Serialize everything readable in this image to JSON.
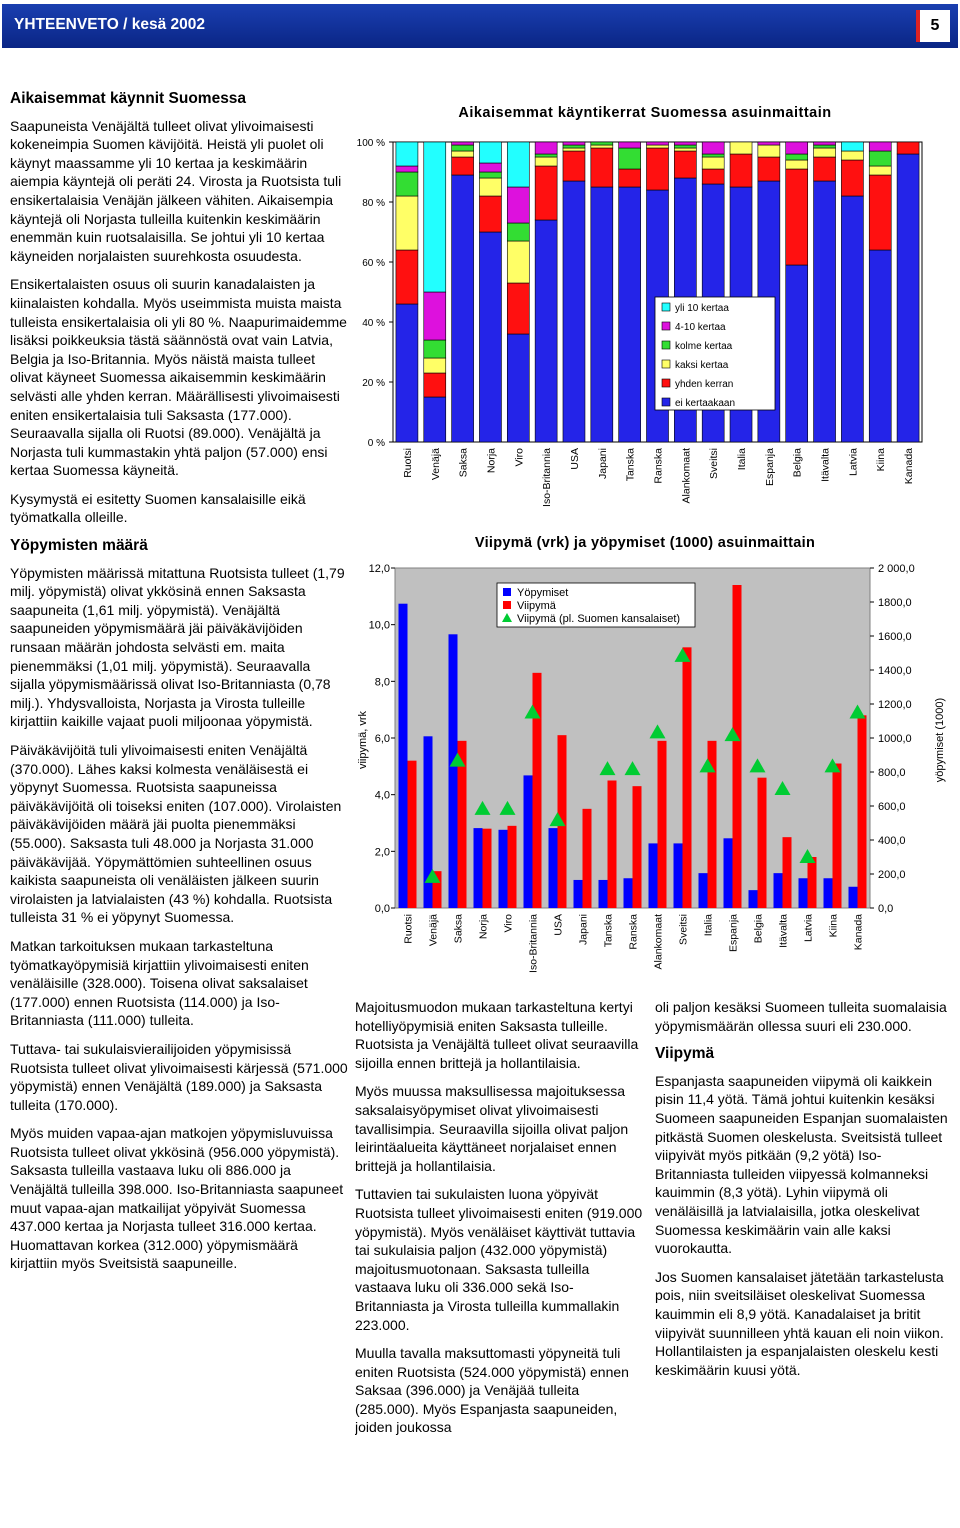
{
  "header": {
    "title": "YHTEENVETO / kesä 2002",
    "page": "5"
  },
  "left_column": [
    {
      "heading": "Aikaisemmat käynnit Suomessa"
    },
    {
      "paragraph": "Saapuneista Venäjältä tulleet olivat ylivoimaisesti kokeneimpia Suomen kävijöitä. Heistä yli puolet oli käynyt maassamme yli 10 kertaa ja keskimäärin aiempia käyntejä oli peräti 24. Virosta ja Ruotsista tuli ensikertalaisia Venäjän jälkeen vähiten. Aikaisempia käyntejä oli Norjasta tulleilla kuitenkin keskimäärin enemmän kuin ruotsalaisilla. Se johtui yli 10 kertaa käyneiden norjalaisten suurehkosta osuudesta."
    },
    {
      "paragraph": "Ensikertalaisten osuus oli suurin kanadalaisten ja kiinalaisten kohdalla. Myös useimmista muista maista tulleista ensikertalaisia oli yli 80 %. Naapurimaidemme lisäksi poikkeuksia tästä säännöstä ovat vain Latvia, Belgia ja Iso-Britannia. Myös näistä maista tulleet olivat käyneet Suomessa aikaisemmin keskimäärin selvästi alle yhden kerran. Määrällisesti ylivoimaisesti eniten ensikertalaisia tuli Saksasta (177.000). Seuraavalla sijalla oli Ruotsi (89.000). Venäjältä ja Norjasta tuli kummastakin yhtä paljon (57.000) ensi kertaa Suomessa käyneitä."
    },
    {
      "paragraph": "Kysymystä ei esitetty Suomen kansalaisille eikä työmatkalla olleille."
    },
    {
      "heading": "Yöpymisten määrä"
    },
    {
      "paragraph": "Yöpymisten määrissä mitattuna Ruotsista tulleet (1,79 milj. yöpymistä) olivat ykkösinä ennen Saksasta saapuneita (1,61 milj. yöpymistä). Venäjältä saapuneiden yöpymismäärä jäi päiväkävijöiden runsaan määrän johdosta selvästi em. maita pienemmäksi (1,01 milj. yöpymistä). Seuraavalla sijalla yöpymismäärissä olivat Iso-Britanniasta (0,78 milj.). Yhdysvalloista, Norjasta ja Virosta tulleille kirjattiin kaikille vajaat puoli miljoonaa yöpymistä."
    },
    {
      "paragraph": "Päiväkävijöitä tuli ylivoimaisesti eniten Venäjältä (370.000). Lähes kaksi kolmesta venäläisestä ei yöpynyt Suomessa. Ruotsista saapuneissa päiväkävijöitä oli toiseksi eniten (107.000). Virolaisten päiväkävijöiden määrä jäi puolta pienemmäksi (55.000). Saksasta tuli 48.000 ja Norjasta 31.000 päiväkävijää. Yöpymättömien suhteellinen osuus kaikista saapuneista oli venäläisten jälkeen suurin virolaisten ja latvialaisten (43 %) kohdalla. Ruotsista tulleista 31 % ei yöpynyt Suomessa."
    },
    {
      "paragraph": "Matkan tarkoituksen mukaan tarkasteltuna työmatkayöpymisiä kirjattiin ylivoimaisesti eniten venäläisille (328.000). Toisena olivat saksalaiset (177.000) ennen Ruotsista (114.000) ja Iso-Britanniasta (111.000) tulleita."
    },
    {
      "paragraph": "Tuttava- tai sukulaisvierailijoiden yöpymisissä Ruotsista tulleet olivat ylivoimaisesti kärjessä (571.000 yöpymistä) ennen Venäjältä (189.000) ja Saksasta tulleita (170.000)."
    },
    {
      "paragraph": "Myös muiden vapaa-ajan matkojen yöpymisluvuissa Ruotsista tulleet olivat ykkösinä (956.000 yöpymistä). Saksasta tulleilla vastaava luku oli 886.000 ja Venäjältä tulleilla 398.000. Iso-Britanniasta saapuneet muut vapaa-ajan matkailijat yöpyivät Suomessa 437.000 kertaa ja Norjasta tulleet 316.000 kertaa. Huomattavan korkea (312.000) yöpymismäärä kirjattiin myös Sveitsistä saapuneille."
    }
  ],
  "middle_column": [
    {
      "paragraph": "Majoitusmuodon mukaan tarkasteltuna kertyi hotelliyöpymisiä eniten Saksasta tulleille. Ruotsista ja Venäjältä tulleet olivat seuraavilla sijoilla ennen brittejä ja hollantilaisia."
    },
    {
      "paragraph": "Myös muussa maksullisessa majoituksessa saksalaisyöpymiset olivat ylivoimaisesti tavallisimpia. Seuraavilla sijoilla olivat paljon leirintäalueita käyttäneet norjalaiset ennen brittejä ja hollantilaisia."
    },
    {
      "paragraph": "Tuttavien tai sukulaisten luona yöpyivät Ruotsista tulleet ylivoimaisesti eniten (919.000 yöpymistä). Myös venäläiset käyttivät tuttavia tai sukulaisia paljon (432.000 yöpymistä) majoitusmuotonaan. Saksasta tulleilla vastaava luku oli 336.000 sekä Iso-Britanniasta ja Virosta tulleilla kummallakin 223.000."
    },
    {
      "paragraph": "Muulla tavalla maksuttomasti yöpyneitä tuli eniten Ruotsista (524.000 yöpymistä) ennen Saksaa (396.000) ja Venäjää tulleita (285.000). Myös Espanjasta saapuneiden, joiden joukossa"
    }
  ],
  "right_column": [
    {
      "paragraph": "oli paljon kesäksi Suomeen tulleita suomalaisia yöpymismäärän ollessa suuri eli 230.000."
    },
    {
      "heading": "Viipymä"
    },
    {
      "paragraph": "Espanjasta saapuneiden viipymä oli kaikkein pisin 11,4 yötä. Tämä johtui kuitenkin kesäksi Suomeen saapuneiden Espanjan suomalaisten pitkästä Suomen oleskelusta. Sveitsistä tulleet viipyivät myös pitkään (9,2 yötä) Iso-Britanniasta tulleiden viipyessä kolmanneksi kauimmin (8,3 yötä). Lyhin viipymä oli venäläisillä ja latvialaisilla, jotka oleskelivat Suomessa keskimäärin vain alle kaksi vuorokautta."
    },
    {
      "paragraph": "Jos Suomen kansalaiset jätetään tarkastelusta pois, niin sveitsiläiset oleskelivat Suomessa kauimmin eli 8,9 yötä. Kanadalaiset ja britit viipyivät suunnilleen yhtä kauan eli noin viikon. Hollantilaisten ja espanjalaisten oleskelu kesti keskimäärin kuusi yötä."
    }
  ],
  "chart_data": [
    {
      "type": "bar",
      "stacked": true,
      "title": "Aikaisemmat käyntikerrat Suomessa asuinmaittain",
      "categories": [
        "Ruotsi",
        "Venäjä",
        "Saksa",
        "Norja",
        "Viro",
        "Iso-Britannia",
        "USA",
        "Japani",
        "Tanska",
        "Ranska",
        "Alankomaat",
        "Sveitsi",
        "Italia",
        "Espanja",
        "Belgia",
        "Itävalta",
        "Latvia",
        "Kiina",
        "Kanada"
      ],
      "series": [
        {
          "name": "ei kertaakaan",
          "color": "#2424e8",
          "values": [
            46,
            15,
            89,
            70,
            36,
            74,
            87,
            85,
            85,
            84,
            88,
            86,
            85,
            87,
            59,
            87,
            82,
            64,
            96
          ]
        },
        {
          "name": "yhden kerran",
          "color": "#ff1010",
          "values": [
            18,
            8,
            6,
            12,
            17,
            18,
            10,
            13,
            6,
            14,
            9,
            5,
            11,
            8,
            32,
            8,
            12,
            25,
            4
          ]
        },
        {
          "name": "kaksi kertaa",
          "color": "#ffff66",
          "values": [
            18,
            5,
            2,
            6,
            14,
            3,
            1,
            1,
            0,
            1,
            1,
            4,
            4,
            4,
            3,
            3,
            3,
            3,
            0
          ]
        },
        {
          "name": "kolme kertaa",
          "color": "#33dd33",
          "values": [
            8,
            6,
            2,
            2,
            6,
            1,
            1,
            1,
            7,
            0,
            1,
            1,
            0,
            0,
            2,
            1,
            0,
            5,
            0
          ]
        },
        {
          "name": "4-10 kertaa",
          "color": "#dd11dd",
          "values": [
            2,
            16,
            1,
            3,
            12,
            4,
            1,
            0,
            2,
            1,
            1,
            4,
            0,
            1,
            4,
            1,
            0,
            3,
            0
          ]
        },
        {
          "name": "yli 10 kertaa",
          "color": "#22ffff",
          "values": [
            8,
            50,
            0,
            7,
            15,
            0,
            0,
            0,
            0,
            0,
            0,
            0,
            0,
            0,
            0,
            0,
            3,
            0,
            0
          ]
        }
      ],
      "ylim": [
        0,
        100
      ],
      "yticks": [
        {
          "value": 0,
          "label": "0 %"
        },
        {
          "value": 20,
          "label": "20 %"
        },
        {
          "value": 40,
          "label": "40 %"
        },
        {
          "value": 60,
          "label": "60 %"
        },
        {
          "value": 80,
          "label": "80 %"
        },
        {
          "value": 100,
          "label": "100 %"
        }
      ]
    },
    {
      "type": "combo",
      "title": "Viipymä (vrk) ja yöpymiset (1000) asuinmaittain",
      "y_label": "viipymä, vrk",
      "y2_label": "yöpymiset (1000)",
      "categories": [
        "Ruotsi",
        "Venäjä",
        "Saksa",
        "Norja",
        "Viro",
        "Iso-Britannia",
        "USA",
        "Japani",
        "Tanska",
        "Ranska",
        "Alankomaat",
        "Sveitsi",
        "Italia",
        "Espanja",
        "Belgia",
        "Itävalta",
        "Latvia",
        "Kiina",
        "Kanada"
      ],
      "series": [
        {
          "name": "Yöpymiset",
          "color": "#0000ff",
          "axis": "y2",
          "values": [
            1790,
            1010,
            1610,
            470,
            460,
            780,
            470,
            165,
            165,
            175,
            380,
            380,
            205,
            410,
            105,
            205,
            175,
            175,
            125
          ]
        },
        {
          "name": "Viipymä",
          "color": "#ff0000",
          "values": [
            5.2,
            1.3,
            5.9,
            2.8,
            2.9,
            8.3,
            6.1,
            3.5,
            4.5,
            4.3,
            5.9,
            9.2,
            5.9,
            11.4,
            4.6,
            2.5,
            1.8,
            5.1,
            6.8
          ]
        },
        {
          "name": "Viipymä (pl. Suomen kansalaiset)",
          "color": "#00cc33",
          "marker": "triangle",
          "values": [
            null,
            1.1,
            5.2,
            3.5,
            3.5,
            6.9,
            3.1,
            null,
            4.9,
            4.9,
            6.2,
            8.9,
            5.0,
            6.1,
            5.0,
            4.2,
            1.8,
            5.0,
            6.9
          ]
        }
      ],
      "ylim": [
        0,
        12
      ],
      "yticks": [
        {
          "value": 0,
          "label": "0,0"
        },
        {
          "value": 2,
          "label": "2,0"
        },
        {
          "value": 4,
          "label": "4,0"
        },
        {
          "value": 6,
          "label": "6,0"
        },
        {
          "value": 8,
          "label": "8,0"
        },
        {
          "value": 10,
          "label": "10,0"
        },
        {
          "value": 12,
          "label": "12,0"
        }
      ],
      "y2lim": [
        0,
        2000
      ],
      "y2ticks": [
        {
          "value": 0,
          "label": "0,0"
        },
        {
          "value": 200,
          "label": "200,0"
        },
        {
          "value": 400,
          "label": "400,0"
        },
        {
          "value": 600,
          "label": "600,0"
        },
        {
          "value": 800,
          "label": "800,0"
        },
        {
          "value": 1000,
          "label": "1000,0"
        },
        {
          "value": 1200,
          "label": "1200,0"
        },
        {
          "value": 1400,
          "label": "1400,0"
        },
        {
          "value": 1600,
          "label": "1600,0"
        },
        {
          "value": 1800,
          "label": "1800,0"
        },
        {
          "value": 2000,
          "label": "2 000,0"
        }
      ]
    }
  ]
}
